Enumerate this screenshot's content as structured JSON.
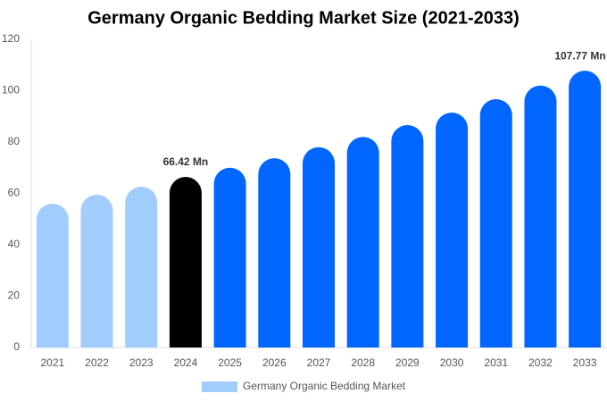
{
  "chart_data": {
    "type": "bar",
    "title": "Germany Organic Bedding Market Size (2021-2033)",
    "categories": [
      "2021",
      "2022",
      "2023",
      "2024",
      "2025",
      "2026",
      "2027",
      "2028",
      "2029",
      "2030",
      "2031",
      "2032",
      "2033"
    ],
    "series": [
      {
        "name": "Germany Organic Bedding Market",
        "color": "#a0cdfb",
        "colors": [
          "#a0cdfb",
          "#a0cdfb",
          "#a0cdfb",
          "#000000",
          "#0066ff",
          "#0066ff",
          "#0066ff",
          "#0066ff",
          "#0066ff",
          "#0066ff",
          "#0066ff",
          "#0066ff",
          "#0066ff"
        ],
        "values": [
          56,
          59.5,
          62.6,
          66.42,
          70,
          73.7,
          78,
          82,
          86.6,
          91.5,
          96.7,
          102,
          107.77
        ],
        "value_labels": [
          null,
          null,
          null,
          "66.42 Mn",
          null,
          null,
          null,
          null,
          null,
          null,
          null,
          null,
          "107.77 Mn"
        ]
      }
    ],
    "ylim": [
      0,
      120
    ],
    "yticks": [
      0,
      20,
      40,
      60,
      80,
      100,
      120
    ],
    "grid": false
  }
}
